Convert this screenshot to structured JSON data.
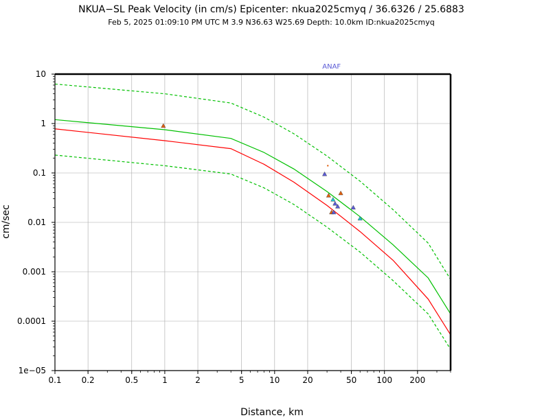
{
  "chart_data": {
    "type": "scatter",
    "title": "NKUA−SL Peak Velocity (in cm/s) Epicenter: nkua2025cmyq / 36.6326 / 25.6883",
    "subtitle": "Feb  5, 2025 01:09:10 PM UTC   M 3.9   N36.63 W25.69   Depth: 10.0km   ID:nkua2025cmyq",
    "xlabel": "Distance, km",
    "ylabel": "cm/sec",
    "xscale": "log",
    "yscale": "log",
    "xlim": [
      0.1,
      400
    ],
    "ylim": [
      1e-05,
      10
    ],
    "grid": true,
    "x_ticks": [
      {
        "value": 0.1,
        "label": "0.1"
      },
      {
        "value": 0.2,
        "label": "0.2"
      },
      {
        "value": 0.5,
        "label": "0.5"
      },
      {
        "value": 1,
        "label": "1"
      },
      {
        "value": 2,
        "label": "2"
      },
      {
        "value": 5,
        "label": "5"
      },
      {
        "value": 10,
        "label": "10"
      },
      {
        "value": 20,
        "label": "20"
      },
      {
        "value": 50,
        "label": "50"
      },
      {
        "value": 100,
        "label": "100"
      },
      {
        "value": 200,
        "label": "200"
      }
    ],
    "y_ticks": [
      {
        "value": 10,
        "label": "10"
      },
      {
        "value": 1,
        "label": "1"
      },
      {
        "value": 0.1,
        "label": "0.1"
      },
      {
        "value": 0.01,
        "label": "0.01"
      },
      {
        "value": 0.001,
        "label": "0.001"
      },
      {
        "value": 0.0001,
        "label": "0.0001"
      },
      {
        "value": 1e-05,
        "label": "1e−05"
      }
    ],
    "series": [
      {
        "name": "GMPE median",
        "style": "solid",
        "color": "#00c000",
        "x": [
          0.1,
          1,
          4,
          8,
          15,
          30,
          60,
          120,
          250,
          400
        ],
        "y": [
          1.2,
          0.75,
          0.5,
          0.26,
          0.12,
          0.042,
          0.013,
          0.0035,
          0.00075,
          0.00014
        ]
      },
      {
        "name": "GMPE +1 sigma",
        "style": "dashed",
        "color": "#00c000",
        "x": [
          0.1,
          1,
          4,
          8,
          15,
          30,
          60,
          120,
          250,
          400
        ],
        "y": [
          6.3,
          4.0,
          2.6,
          1.35,
          0.62,
          0.22,
          0.068,
          0.018,
          0.0038,
          0.0007
        ]
      },
      {
        "name": "GMPE -1 sigma",
        "style": "dashed",
        "color": "#00c000",
        "x": [
          0.1,
          1,
          4,
          8,
          15,
          30,
          60,
          120,
          250,
          400
        ],
        "y": [
          0.23,
          0.14,
          0.095,
          0.05,
          0.023,
          0.008,
          0.0025,
          0.00066,
          0.00014,
          2.7e-05
        ]
      },
      {
        "name": "Model",
        "style": "solid",
        "color": "#ff0000",
        "x": [
          0.1,
          1,
          4,
          8,
          15,
          30,
          60,
          120,
          250,
          400
        ],
        "y": [
          0.78,
          0.45,
          0.31,
          0.15,
          0.065,
          0.022,
          0.0065,
          0.0017,
          0.00028,
          5.3e-05
        ]
      }
    ],
    "stations": [
      {
        "x": 0.97,
        "y": 0.9,
        "color": "#e06010"
      },
      {
        "x": 28.5,
        "y": 0.095,
        "color": "#5b5bd6"
      },
      {
        "x": 30.5,
        "y": 0.14,
        "color": "#e06010",
        "marker": "dot"
      },
      {
        "x": 31,
        "y": 0.035,
        "color": "#e06010"
      },
      {
        "x": 33,
        "y": 0.016,
        "color": "#e06010"
      },
      {
        "x": 34.5,
        "y": 0.016,
        "color": "#5b5bd6"
      },
      {
        "x": 34,
        "y": 0.029,
        "color": "#22c0d0"
      },
      {
        "x": 35.5,
        "y": 0.024,
        "color": "#5b5bd6"
      },
      {
        "x": 37.5,
        "y": 0.021,
        "color": "#5b5bd6"
      },
      {
        "x": 40,
        "y": 0.039,
        "color": "#e06010"
      },
      {
        "x": 52,
        "y": 0.02,
        "color": "#5b5bd6"
      },
      {
        "x": 60,
        "y": 0.012,
        "color": "#22c0d0"
      }
    ],
    "annotations": [
      {
        "text": "ANAF",
        "x": 33
      }
    ]
  }
}
